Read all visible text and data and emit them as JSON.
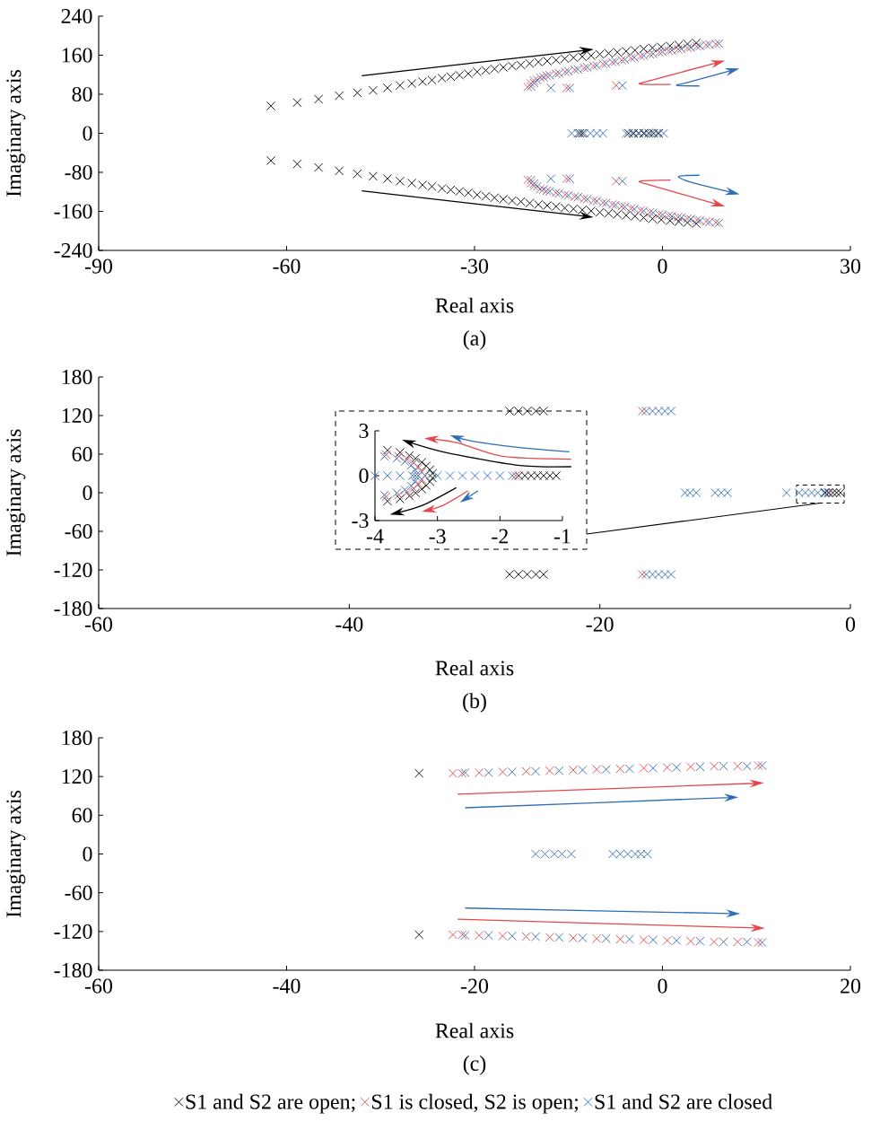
{
  "chart_data": [
    {
      "type": "scatter",
      "xlabel": "Real axis",
      "ylabel": "Imaginary axis",
      "annotations": [
        "(a)"
      ],
      "marker": "cross",
      "legend": false,
      "xlim": [
        -90,
        30
      ],
      "xticks": [
        -90,
        -60,
        -30,
        0,
        30
      ],
      "ylim": [
        -240,
        240
      ],
      "yticks": [
        -240,
        -160,
        -80,
        0,
        80,
        160,
        240
      ],
      "series": [
        {
          "color": "#000000",
          "x": [
            -62.5,
            -58.3,
            -54.9,
            -51.6,
            -48.7,
            -46.2,
            -43.9,
            -41.9,
            -40.0,
            -38.3,
            -36.8,
            -35.2,
            -33.8,
            -32.4,
            -31.0,
            -29.6,
            -28.2,
            -26.8,
            -25.4,
            -24.0,
            -22.6,
            -21.2,
            -19.8,
            -18.4,
            -17.0,
            -15.6,
            -14.2,
            -12.8,
            -11.4,
            -10.0,
            -8.6,
            -7.2,
            -5.8,
            -4.4,
            -3.0,
            -1.6,
            -0.2,
            1.2,
            2.6,
            4.0,
            5.4,
            -62.5,
            -58.3,
            -54.9,
            -51.6,
            -48.7,
            -46.2,
            -43.9,
            -41.9,
            -40.0,
            -38.3,
            -36.8,
            -35.2,
            -33.8,
            -32.4,
            -31.0,
            -29.6,
            -28.2,
            -26.8,
            -25.4,
            -24.0,
            -22.6,
            -21.2,
            -19.8,
            -18.4,
            -17.0,
            -15.6,
            -14.2,
            -12.8,
            -11.4,
            -10.0,
            -8.6,
            -7.2,
            -5.8,
            -4.4,
            -3.0,
            -1.6,
            -0.2,
            1.2,
            2.6,
            4.0,
            5.4,
            -13.2,
            -12.8,
            -5.4,
            -4.6,
            -3.8,
            -3.0,
            -2.2,
            -1.4,
            -0.6
          ],
          "values": [
            56,
            63,
            70,
            77,
            83,
            88,
            93,
            98,
            102,
            106,
            109,
            113,
            116,
            119,
            122,
            126,
            129,
            132,
            135,
            138,
            140,
            143,
            146,
            148,
            150,
            153,
            155,
            157,
            159,
            162,
            164,
            166,
            168,
            170,
            173,
            175,
            177,
            179,
            181,
            183,
            185,
            -56,
            -63,
            -70,
            -77,
            -83,
            -88,
            -93,
            -98,
            -102,
            -106,
            -109,
            -113,
            -116,
            -119,
            -122,
            -126,
            -129,
            -132,
            -135,
            -138,
            -140,
            -143,
            -146,
            -148,
            -150,
            -153,
            -155,
            -157,
            -159,
            -162,
            -164,
            -166,
            -168,
            -170,
            -173,
            -175,
            -177,
            -179,
            -181,
            -183,
            -185,
            0,
            0,
            0,
            0,
            0,
            0,
            0,
            0,
            0
          ]
        },
        {
          "color": "#e5474b",
          "x": [
            -21.5,
            -21,
            -20.5,
            -19.5,
            -18.5,
            -17,
            -15.5,
            -14,
            -12.5,
            -11,
            -9.5,
            -8,
            -6.5,
            -5,
            -3.5,
            -2,
            -0.5,
            1,
            2.5,
            4,
            5.5,
            7,
            8.5,
            -15.3,
            -7.4,
            -21.5,
            -21,
            -20.5,
            -19.5,
            -18.5,
            -17,
            -15.5,
            -14,
            -12.5,
            -11,
            -9.5,
            -8,
            -6.5,
            -5,
            -3.5,
            -2,
            -0.5,
            1,
            2.5,
            4,
            5.5,
            7,
            8.5,
            -15.3,
            -7.4
          ],
          "values": [
            95,
            102,
            108,
            114,
            118,
            122,
            126,
            130,
            134,
            138,
            142,
            146,
            150,
            154,
            158,
            162,
            166,
            169,
            172,
            175,
            178,
            181,
            183,
            93,
            98,
            -95,
            -102,
            -108,
            -114,
            -118,
            -122,
            -126,
            -130,
            -134,
            -138,
            -142,
            -146,
            -150,
            -154,
            -158,
            -162,
            -166,
            -169,
            -172,
            -175,
            -178,
            -181,
            -183,
            -93,
            -98
          ]
        },
        {
          "color": "#2f6db5",
          "x": [
            -21,
            -20.5,
            -20,
            -19,
            -18,
            -16.5,
            -15,
            -13.5,
            -12,
            -10.5,
            -9,
            -7.5,
            -6,
            -4.5,
            -3,
            -1.5,
            0,
            1.5,
            3,
            4.5,
            6,
            7.5,
            9,
            -17.8,
            -14.8,
            -6.4,
            -21,
            -20.5,
            -20,
            -19,
            -18,
            -16.5,
            -15,
            -13.5,
            -12,
            -10.5,
            -9,
            -7.5,
            -6,
            -4.5,
            -3,
            -1.5,
            0,
            1.5,
            3,
            4.5,
            6,
            7.5,
            9,
            -17.8,
            -14.8,
            -6.4,
            -14.5,
            -13.5,
            -12.5,
            -11.5,
            -10.5,
            -9.5,
            -5.8,
            -4.8,
            -3.8,
            -2.8,
            -1.8,
            -0.8,
            0.2
          ],
          "values": [
            96,
            103,
            109,
            115,
            119,
            123,
            127,
            131,
            135,
            139,
            143,
            147,
            151,
            155,
            159,
            163,
            167,
            170,
            173,
            176,
            179,
            182,
            184,
            93,
            93,
            98,
            -96,
            -103,
            -109,
            -115,
            -119,
            -123,
            -127,
            -131,
            -135,
            -139,
            -143,
            -147,
            -151,
            -155,
            -159,
            -163,
            -167,
            -170,
            -173,
            -176,
            -179,
            -182,
            -184,
            -93,
            -93,
            -98,
            0,
            0,
            0,
            0,
            0,
            0,
            0,
            0,
            0,
            0,
            0,
            0,
            0
          ]
        }
      ]
    },
    {
      "type": "scatter",
      "xlabel": "Real axis",
      "ylabel": "Imaginary axis",
      "annotations": [
        "(b)"
      ],
      "marker": "cross",
      "legend": false,
      "xlim": [
        -60,
        0
      ],
      "xticks": [
        -60,
        -40,
        -20,
        0
      ],
      "ylim": [
        -180,
        180
      ],
      "yticks": [
        -180,
        -120,
        -60,
        0,
        60,
        120,
        180
      ],
      "series": [
        {
          "color": "#000000",
          "x": [
            -27.2,
            -26.5,
            -25.8,
            -25.1,
            -24.5,
            -27.2,
            -26.5,
            -25.8,
            -25.1,
            -24.5,
            -2.0,
            -1.7,
            -1.4,
            -1.1,
            -0.8
          ],
          "values": [
            127,
            127,
            127,
            127,
            127,
            -127,
            -127,
            -127,
            -127,
            -127,
            0,
            0,
            0,
            0,
            0
          ]
        },
        {
          "color": "#e5474b",
          "x": [
            -16.6,
            -16.6,
            -1.75
          ],
          "values": [
            127,
            -127,
            0
          ]
        },
        {
          "color": "#2f6db5",
          "x": [
            -16.3,
            -15.8,
            -15.3,
            -14.8,
            -14.3,
            -16.3,
            -15.8,
            -15.3,
            -14.8,
            -14.3,
            -13.2,
            -12.8,
            -12.3,
            -10.8,
            -10.3,
            -9.8,
            -5.1,
            -4.1,
            -3.6,
            -3.1,
            -2.6,
            -2.1,
            -1.8
          ],
          "values": [
            127,
            127,
            127,
            127,
            127,
            -127,
            -127,
            -127,
            -127,
            -127,
            0,
            0,
            0,
            0,
            0,
            0,
            0,
            0,
            0,
            0,
            0,
            0,
            0
          ]
        }
      ]
    },
    {
      "type": "scatter",
      "marker": "cross",
      "legend": false,
      "xlim": [
        -4,
        -1
      ],
      "xticks": [
        -4,
        -3,
        -2,
        -1
      ],
      "ylim": [
        -3,
        3
      ],
      "yticks": [
        -3,
        0,
        3
      ],
      "series": [
        {
          "color": "#000000",
          "x": [
            -3.8,
            -3.6,
            -3.45,
            -3.35,
            -3.25,
            -3.18,
            -3.12,
            -3.08,
            -3.8,
            -3.6,
            -3.45,
            -3.35,
            -3.25,
            -3.18,
            -3.12,
            -3.08,
            -1.7,
            -1.6,
            -1.5,
            -1.4,
            -1.3,
            -1.2,
            -1.1
          ],
          "values": [
            1.7,
            1.55,
            1.35,
            1.15,
            0.9,
            0.65,
            0.4,
            0.15,
            -1.7,
            -1.55,
            -1.35,
            -1.15,
            -0.9,
            -0.65,
            -0.4,
            -0.15,
            0,
            0,
            0,
            0,
            0,
            0,
            0
          ]
        },
        {
          "color": "#e5474b",
          "x": [
            -3.82,
            -3.62,
            -3.48,
            -3.38,
            -3.3,
            -3.25,
            -3.82,
            -3.62,
            -3.48,
            -3.38,
            -3.3,
            -3.25,
            -1.75
          ],
          "values": [
            1.4,
            1.3,
            1.1,
            0.85,
            0.55,
            0.25,
            -1.4,
            -1.3,
            -1.1,
            -0.85,
            -0.55,
            -0.25,
            0
          ]
        },
        {
          "color": "#2f6db5",
          "x": [
            -3.85,
            -3.65,
            -3.52,
            -3.42,
            -3.36,
            -3.33,
            -3.85,
            -3.65,
            -3.52,
            -3.42,
            -3.36,
            -3.33,
            -4,
            -3.8,
            -3.6,
            -3.4,
            -3.2,
            -3,
            -2.8,
            -2.6,
            -2.4,
            -2.2,
            -2,
            -1.8
          ],
          "values": [
            1.3,
            1.15,
            0.95,
            0.7,
            0.4,
            0.1,
            -1.3,
            -1.15,
            -0.95,
            -0.7,
            -0.4,
            -0.1,
            0,
            0,
            0,
            0,
            0,
            0,
            0,
            0,
            0,
            0,
            0,
            0
          ]
        }
      ]
    },
    {
      "type": "scatter",
      "xlabel": "Real axis",
      "ylabel": "Imaginary axis",
      "annotations": [
        "(c)"
      ],
      "marker": "cross",
      "legend": "bottom",
      "xlim": [
        -60,
        20
      ],
      "xticks": [
        -60,
        -40,
        -20,
        0,
        20
      ],
      "ylim": [
        -180,
        180
      ],
      "yticks": [
        -180,
        -120,
        -60,
        0,
        60,
        120,
        180
      ],
      "series": [
        {
          "name": "S1 and S2 are open;",
          "color": "#000000",
          "x": [
            -25.9,
            -25.9
          ],
          "values": [
            125,
            -125
          ]
        },
        {
          "name": "S1 is closed, S2 is open;",
          "color": "#e5474b",
          "x": [
            -22.3,
            -21.3,
            -19.5,
            -17,
            -14.5,
            -12,
            -9.5,
            -7,
            -4.5,
            -2,
            0.5,
            3,
            5.5,
            8,
            10.2,
            -22.3,
            -21.3,
            -19.5,
            -17,
            -14.5,
            -12,
            -9.5,
            -7,
            -4.5,
            -2,
            0.5,
            3,
            5.5,
            8,
            10.2
          ],
          "values": [
            125,
            125,
            126,
            127,
            128,
            129,
            130,
            131,
            132,
            133,
            134,
            135,
            136,
            136,
            137,
            -125,
            -125,
            -126,
            -127,
            -128,
            -129,
            -130,
            -131,
            -132,
            -133,
            -134,
            -135,
            -136,
            -136,
            -137
          ]
        },
        {
          "name": "S1 and S2 are closed",
          "color": "#2f6db5",
          "x": [
            -21,
            -18.5,
            -16,
            -13.5,
            -11,
            -8.5,
            -6,
            -3.5,
            -1,
            1.5,
            4,
            6.5,
            9,
            10.6,
            -21,
            -18.5,
            -16,
            -13.5,
            -11,
            -8.5,
            -6,
            -3.5,
            -1,
            1.5,
            4,
            6.5,
            9,
            10.6,
            -13.5,
            -12.5,
            -11.5,
            -10.7,
            -9.7,
            -5.3,
            -4.5,
            -3.7,
            -2.9,
            -2.3,
            -1.6
          ],
          "values": [
            126,
            126,
            127,
            128,
            129,
            130,
            131,
            132,
            133,
            134,
            135,
            136,
            136,
            137,
            -126,
            -126,
            -127,
            -128,
            -129,
            -130,
            -131,
            -132,
            -133,
            -134,
            -135,
            -136,
            -136,
            -137,
            0,
            0,
            0,
            0,
            0,
            0,
            0,
            0,
            0,
            0,
            0
          ]
        }
      ]
    }
  ]
}
